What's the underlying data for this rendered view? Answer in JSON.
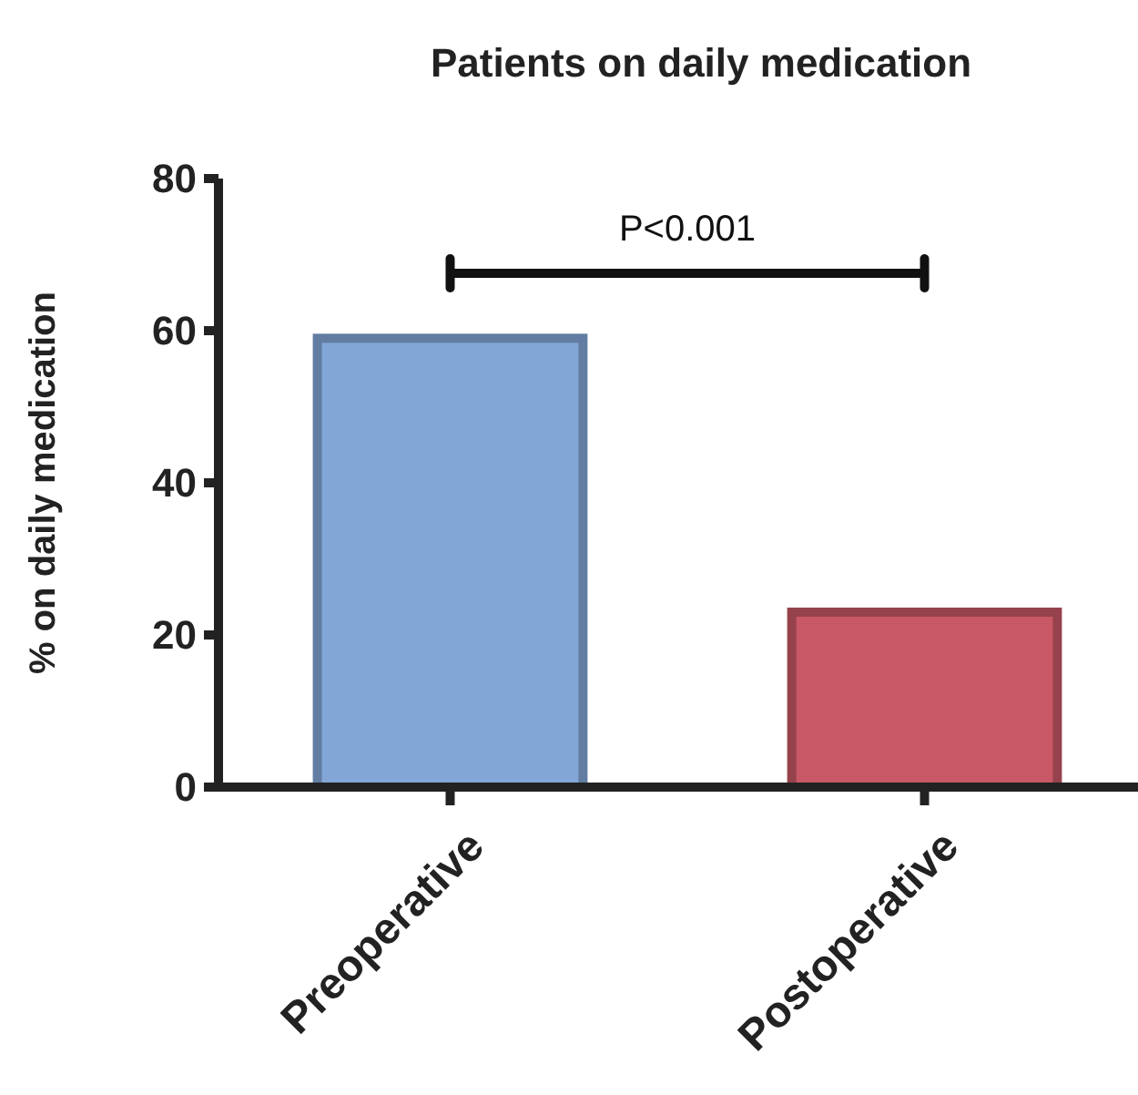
{
  "chart_data": {
    "type": "bar",
    "title": "Patients on daily medication",
    "ylabel": "% on daily medication",
    "categories": [
      "Preoperative",
      "Postoperative"
    ],
    "values": [
      59,
      23
    ],
    "colors": [
      "#82a6d6",
      "#c85865"
    ],
    "ylim": [
      0,
      80
    ],
    "yticks": [
      0,
      20,
      40,
      60,
      80
    ],
    "grid": false,
    "annotations": [
      "P<0.001"
    ]
  }
}
